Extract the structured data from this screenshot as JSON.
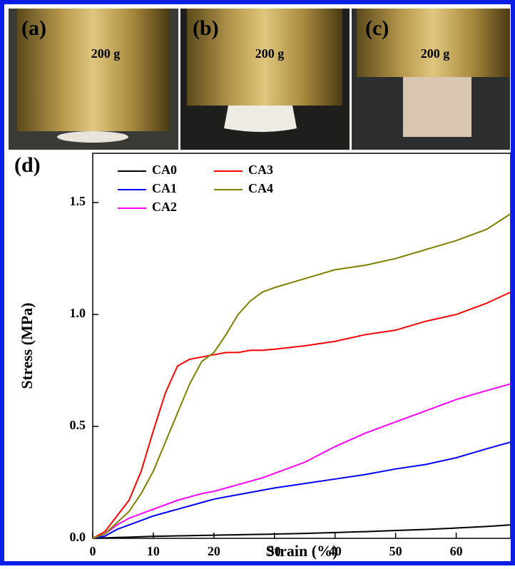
{
  "panels": [
    {
      "label": "(a)",
      "load": "200 g"
    },
    {
      "label": "(b)",
      "load": "200 g"
    },
    {
      "label": "(c)",
      "load": "200 g"
    }
  ],
  "chart_data": {
    "type": "line",
    "panel_label": "(d)",
    "x_label": "Strain (%)",
    "y_label": "Stress (MPa)",
    "xlim": [
      0,
      69
    ],
    "ylim": [
      0,
      1.72
    ],
    "xticks": [
      0,
      10,
      20,
      30,
      40,
      50,
      60
    ],
    "yticks": [
      {
        "value": 0,
        "label": "0.0"
      },
      {
        "value": 0.5,
        "label": "0.5"
      },
      {
        "value": 1,
        "label": "1.0"
      },
      {
        "value": 1.5,
        "label": "1.5"
      }
    ],
    "x": [
      0,
      2,
      4,
      6,
      8,
      10,
      12,
      14,
      16,
      18,
      20,
      22,
      24,
      26,
      28,
      30,
      35,
      40,
      45,
      50,
      55,
      60,
      65,
      69
    ],
    "series": [
      {
        "name": "CA0",
        "color": "#000000",
        "values": [
          0,
          0.002,
          0.004,
          0.005,
          0.007,
          0.009,
          0.01,
          0.011,
          0.012,
          0.013,
          0.014,
          0.015,
          0.016,
          0.017,
          0.018,
          0.019,
          0.022,
          0.026,
          0.03,
          0.035,
          0.04,
          0.046,
          0.053,
          0.06
        ]
      },
      {
        "name": "CA1",
        "color": "#0000ff",
        "values": [
          0,
          0.01,
          0.04,
          0.06,
          0.08,
          0.1,
          0.115,
          0.13,
          0.145,
          0.16,
          0.175,
          0.185,
          0.195,
          0.205,
          0.215,
          0.225,
          0.245,
          0.265,
          0.285,
          0.31,
          0.33,
          0.36,
          0.4,
          0.43
        ]
      },
      {
        "name": "CA2",
        "color": "#ff00ff",
        "values": [
          0,
          0.02,
          0.06,
          0.09,
          0.11,
          0.13,
          0.15,
          0.17,
          0.185,
          0.2,
          0.21,
          0.225,
          0.24,
          0.255,
          0.27,
          0.29,
          0.34,
          0.41,
          0.47,
          0.52,
          0.57,
          0.62,
          0.66,
          0.69
        ]
      },
      {
        "name": "CA3",
        "color": "#ff0000",
        "values": [
          0,
          0.03,
          0.1,
          0.17,
          0.3,
          0.48,
          0.65,
          0.77,
          0.8,
          0.81,
          0.82,
          0.83,
          0.83,
          0.84,
          0.84,
          0.845,
          0.86,
          0.88,
          0.91,
          0.93,
          0.97,
          1.0,
          1.05,
          1.1
        ]
      },
      {
        "name": "CA4",
        "color": "#808000",
        "values": [
          0,
          0.02,
          0.07,
          0.12,
          0.2,
          0.3,
          0.43,
          0.56,
          0.69,
          0.79,
          0.83,
          0.91,
          1.0,
          1.06,
          1.1,
          1.12,
          1.16,
          1.2,
          1.22,
          1.25,
          1.29,
          1.33,
          1.38,
          1.45
        ]
      }
    ]
  }
}
